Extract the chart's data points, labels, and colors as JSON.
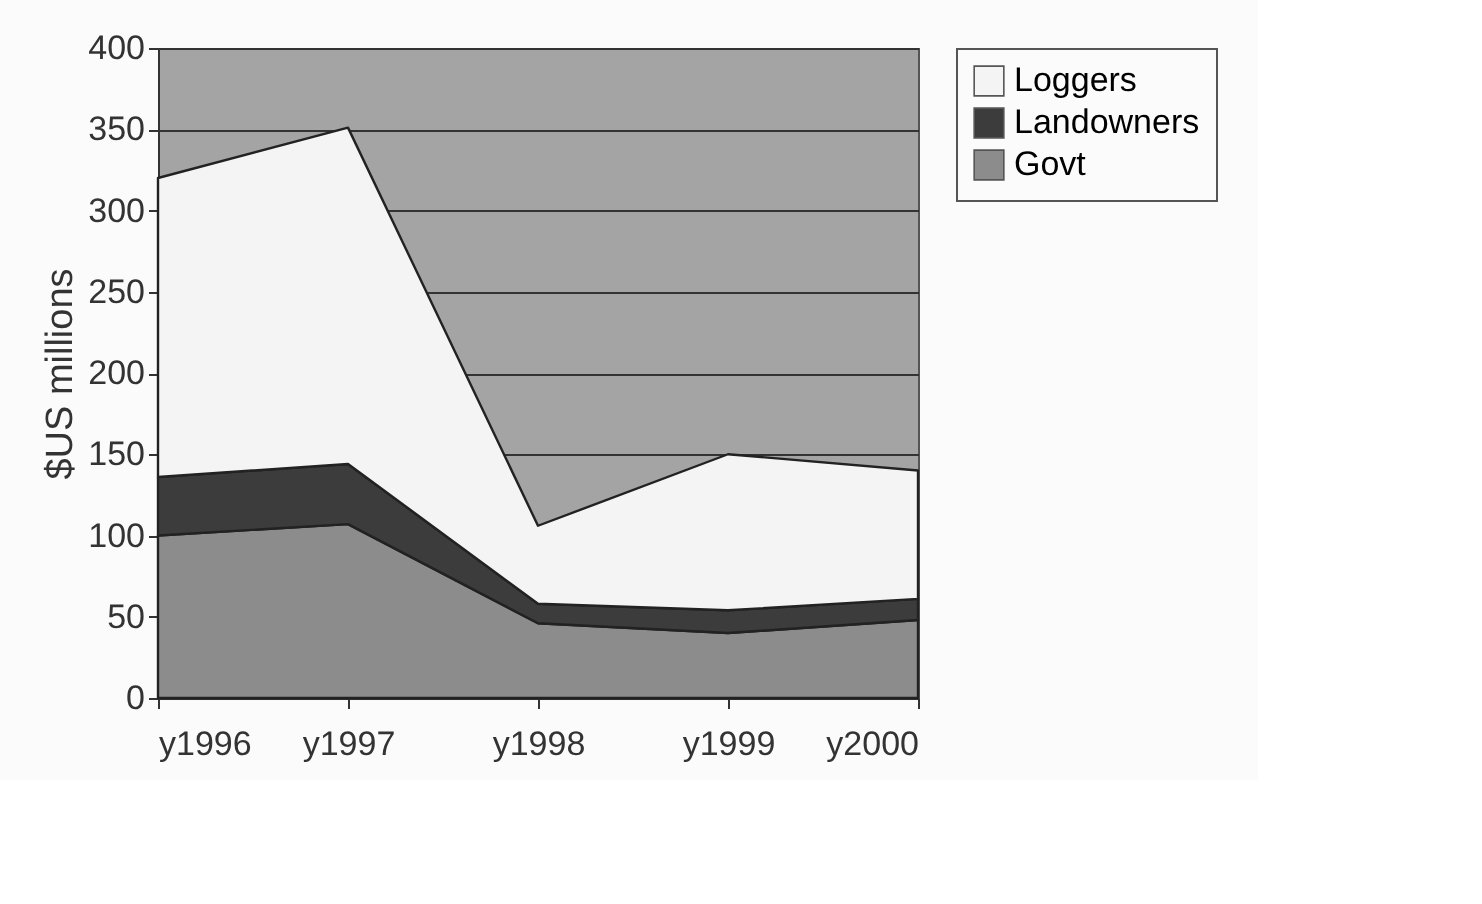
{
  "chart_data": {
    "type": "area",
    "stacked": true,
    "ylabel": "$US millions",
    "categories": [
      "y1996",
      "y1997",
      "y1998",
      "y1999",
      "y2000"
    ],
    "series": [
      {
        "name": "Govt",
        "color": "#8c8c8c",
        "values": [
          100,
          107,
          46,
          40,
          48
        ]
      },
      {
        "name": "Landowners",
        "color": "#3c3c3c",
        "values": [
          36,
          37,
          12,
          14,
          13
        ]
      },
      {
        "name": "Loggers",
        "color": "#f4f4f4",
        "values": [
          184,
          207,
          48,
          96,
          79
        ]
      }
    ],
    "ylim": [
      0,
      400
    ],
    "yticks": [
      0,
      50,
      100,
      150,
      200,
      250,
      300,
      350,
      400
    ],
    "grid": "y",
    "legend": "right"
  }
}
